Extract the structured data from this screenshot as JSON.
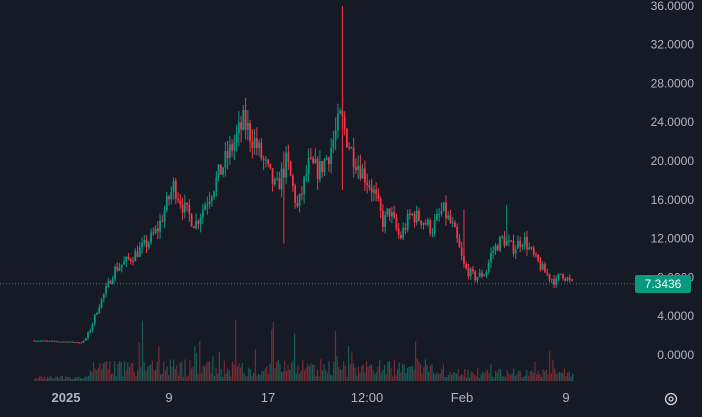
{
  "chart_data": {
    "type": "candlestick",
    "title": "",
    "xlabel": "",
    "ylabel": "",
    "ylim": [
      -2,
      36
    ],
    "y_ticks": [
      0,
      4,
      8,
      12,
      16,
      20,
      24,
      28,
      32,
      36
    ],
    "y_tick_labels": [
      "0.0000",
      "4.0000",
      "8.0000",
      "12.0000",
      "16.0000",
      "20.0000",
      "24.0000",
      "28.0000",
      "32.0000",
      "36.0000"
    ],
    "x_tick_labels": [
      "2025",
      "9",
      "17",
      "12:00",
      "Feb",
      "9"
    ],
    "x_tick_bold": [
      true,
      false,
      false,
      false,
      false,
      false
    ],
    "grid": false,
    "current_price": 7.3436,
    "current_price_label": "7.3436",
    "up_color": "#089981",
    "down_color": "#f23645",
    "price_path": [
      [
        0.0,
        1.5
      ],
      [
        0.09,
        1.3
      ],
      [
        0.1,
        2.0
      ],
      [
        0.12,
        5.0
      ],
      [
        0.15,
        8.8
      ],
      [
        0.18,
        10.0
      ],
      [
        0.21,
        11.5
      ],
      [
        0.23,
        13.0
      ],
      [
        0.26,
        17.5
      ],
      [
        0.28,
        15.0
      ],
      [
        0.3,
        13.5
      ],
      [
        0.33,
        17.0
      ],
      [
        0.36,
        20.5
      ],
      [
        0.39,
        24.0
      ],
      [
        0.41,
        22.0
      ],
      [
        0.43,
        19.5
      ],
      [
        0.45,
        17.0
      ],
      [
        0.47,
        20.0
      ],
      [
        0.49,
        15.0
      ],
      [
        0.51,
        19.5
      ],
      [
        0.53,
        19.0
      ],
      [
        0.55,
        21.0
      ],
      [
        0.57,
        24.5
      ],
      [
        0.59,
        21.0
      ],
      [
        0.61,
        19.0
      ],
      [
        0.63,
        17.0
      ],
      [
        0.65,
        13.5
      ],
      [
        0.66,
        15.0
      ],
      [
        0.68,
        12.0
      ],
      [
        0.7,
        14.5
      ],
      [
        0.72,
        14.0
      ],
      [
        0.74,
        13.0
      ],
      [
        0.76,
        15.0
      ],
      [
        0.78,
        13.0
      ],
      [
        0.8,
        9.0
      ],
      [
        0.82,
        8.0
      ],
      [
        0.84,
        8.5
      ],
      [
        0.85,
        10.5
      ],
      [
        0.87,
        12.0
      ],
      [
        0.89,
        11.0
      ],
      [
        0.91,
        12.0
      ],
      [
        0.93,
        10.0
      ],
      [
        0.95,
        8.5
      ],
      [
        0.97,
        7.5
      ],
      [
        0.98,
        8.5
      ],
      [
        1.0,
        7.3436
      ]
    ],
    "spikes": [
      {
        "t": 0.575,
        "high": 36.0,
        "low": 17.0
      },
      {
        "t": 0.465,
        "high": 21.0,
        "low": 11.5
      },
      {
        "t": 0.8,
        "high": 15.0,
        "low": 9.0
      },
      {
        "t": 0.88,
        "high": 15.5,
        "low": 11.5
      }
    ]
  },
  "controls": {
    "settings_icon": "gear-icon"
  }
}
